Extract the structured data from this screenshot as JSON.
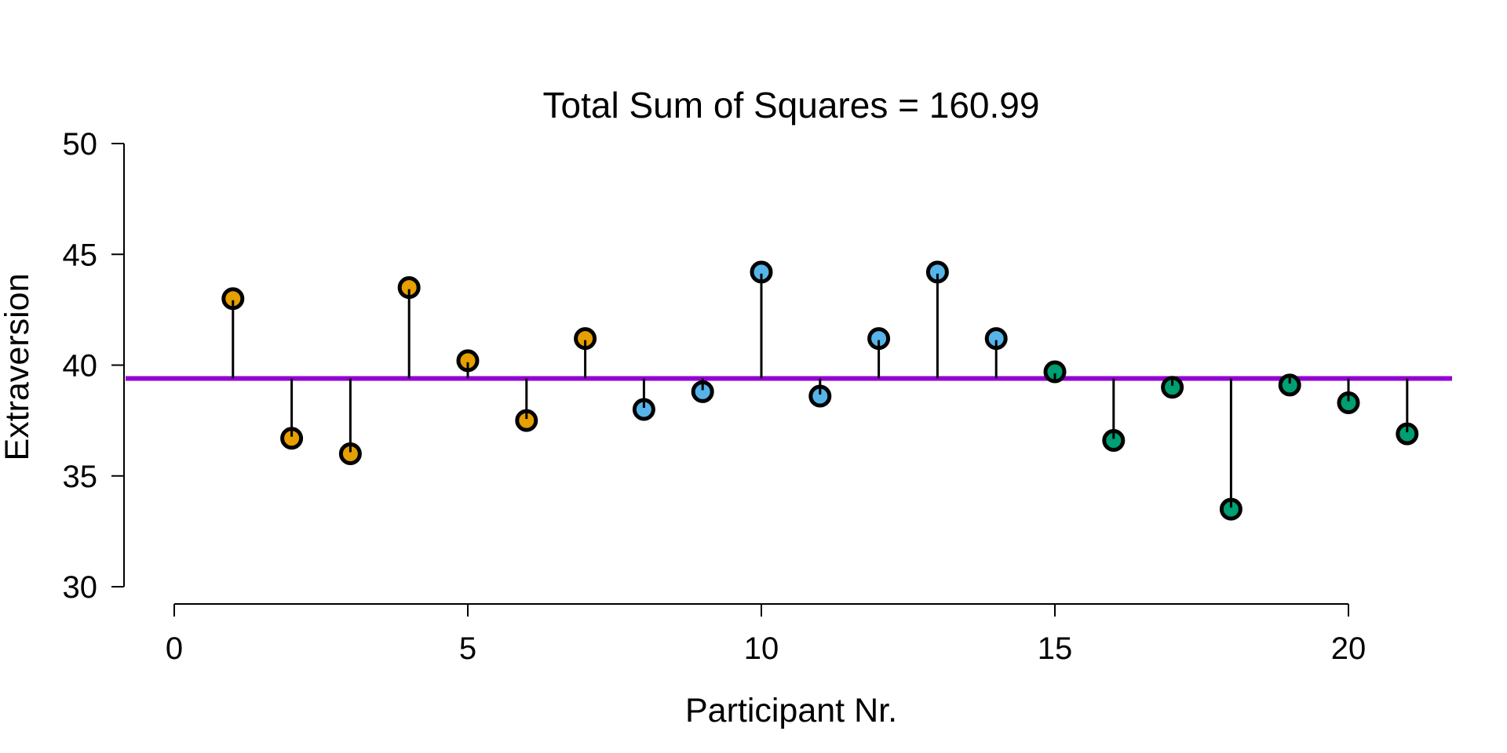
{
  "chart_data": {
    "type": "scatter",
    "title": "Total Sum of Squares = 160.99",
    "xlabel": "Participant Nr.",
    "ylabel": "Extraversion",
    "xlim": [
      0,
      22
    ],
    "ylim": [
      30,
      50
    ],
    "x_ticks": [
      0,
      5,
      10,
      15,
      20
    ],
    "y_ticks": [
      30,
      35,
      40,
      45,
      50
    ],
    "grid": false,
    "mean_line": {
      "value": 39.4,
      "color": "#9400D3"
    },
    "residual_color": "#000000",
    "series": [
      {
        "color": "#E69F00",
        "points": [
          {
            "x": 1,
            "y": 43.0
          },
          {
            "x": 2,
            "y": 36.7
          },
          {
            "x": 3,
            "y": 36.0
          },
          {
            "x": 4,
            "y": 43.5
          },
          {
            "x": 5,
            "y": 40.2
          },
          {
            "x": 6,
            "y": 37.5
          },
          {
            "x": 7,
            "y": 41.2
          }
        ]
      },
      {
        "color": "#56B4E9",
        "points": [
          {
            "x": 8,
            "y": 38.0
          },
          {
            "x": 9,
            "y": 38.8
          },
          {
            "x": 10,
            "y": 44.2
          },
          {
            "x": 11,
            "y": 38.6
          },
          {
            "x": 12,
            "y": 41.2
          },
          {
            "x": 13,
            "y": 44.2
          },
          {
            "x": 14,
            "y": 41.2
          }
        ]
      },
      {
        "color": "#009E73",
        "points": [
          {
            "x": 15,
            "y": 39.7
          },
          {
            "x": 16,
            "y": 36.6
          },
          {
            "x": 17,
            "y": 39.0
          },
          {
            "x": 18,
            "y": 33.5
          },
          {
            "x": 19,
            "y": 39.1
          },
          {
            "x": 20,
            "y": 38.3
          },
          {
            "x": 21,
            "y": 36.9
          }
        ]
      }
    ]
  }
}
